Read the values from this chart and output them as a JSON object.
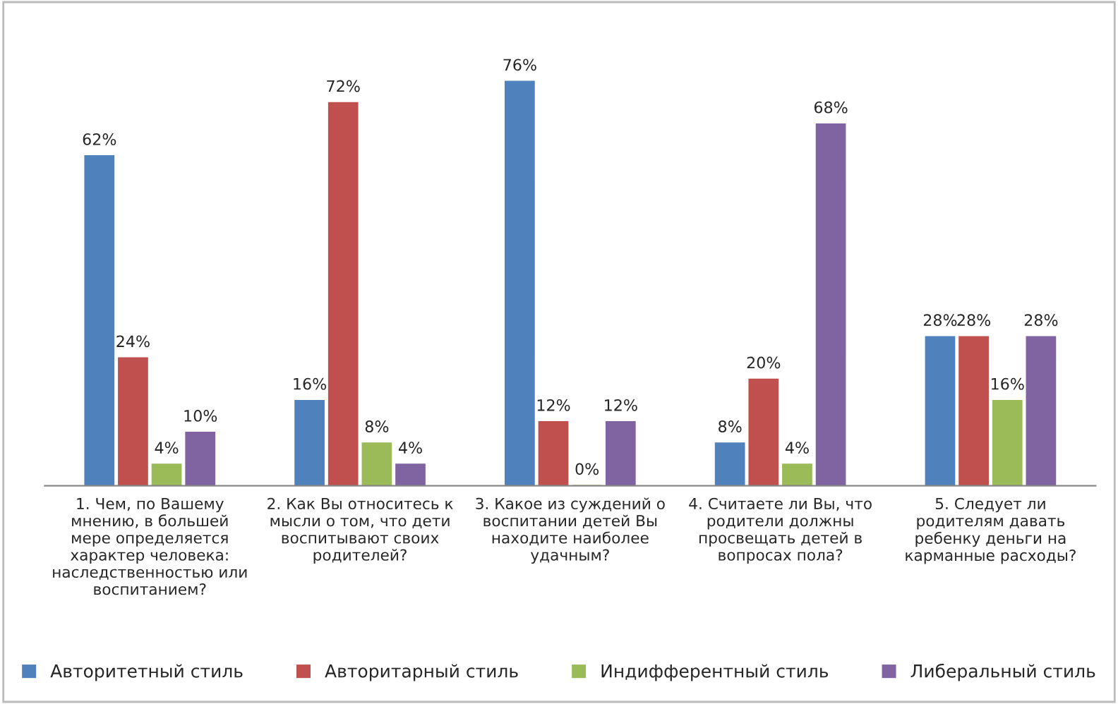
{
  "chart_data": {
    "type": "bar",
    "categories": [
      "1. Чем, по Вашему\nмнению, в большей\nмере определяется\nхарактер человека:\nнаследственностью или\nвоспитанием?",
      "2. Как Вы относитесь к\nмысли о том, что дети\nвоспитывают своих\nродителей?",
      "3. Какое из суждений о\nвоспитании детей Вы\nнаходите наиболее\nудачным?",
      "4. Считаете ли Вы, что\nродители должны\nпросвещать детей в\nвопросах пола?",
      "5. Следует ли\nродителям давать\nребенку деньги на\nкарманные расходы?"
    ],
    "series": [
      {
        "name": "Авторитетный стиль",
        "color": "#4f81bd",
        "values": [
          62,
          16,
          76,
          8,
          28
        ],
        "value_labels": [
          "62%",
          "16%",
          "76%",
          "8%",
          "28%"
        ]
      },
      {
        "name": "Авторитарный стиль",
        "color": "#c0504d",
        "values": [
          24,
          72,
          12,
          20,
          28
        ],
        "value_labels": [
          "24%",
          "72%",
          "12%",
          "20%",
          "28%"
        ]
      },
      {
        "name": "Индифферентный стиль",
        "color": "#9bbb59",
        "values": [
          4,
          8,
          0,
          4,
          16
        ],
        "value_labels": [
          "4%",
          "8%",
          "0%",
          "4%",
          "16%"
        ]
      },
      {
        "name": "Либеральный стиль",
        "color": "#8064a2",
        "values": [
          10,
          4,
          12,
          68,
          28
        ],
        "value_labels": [
          "10%",
          "4%",
          "12%",
          "68%",
          "28%"
        ]
      }
    ],
    "legend": "bottom",
    "grid": false
  }
}
